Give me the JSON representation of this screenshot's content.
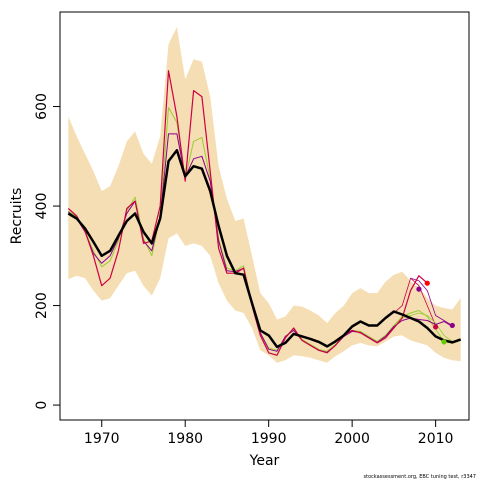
{
  "chart_data": {
    "type": "line",
    "xlabel": "Year",
    "ylabel": "Recruits",
    "footnote": "stockassessment.org, EBC tuning test, r3347",
    "xlim": [
      1965,
      2014
    ],
    "ylim": [
      -30,
      790
    ],
    "x_ticks": [
      1970,
      1980,
      1990,
      2000,
      2010
    ],
    "y_ticks": [
      0,
      200,
      400,
      600
    ],
    "band": {
      "color": "#f5deb3",
      "x": [
        1966,
        1967,
        1968,
        1969,
        1970,
        1971,
        1972,
        1973,
        1974,
        1975,
        1976,
        1977,
        1978,
        1979,
        1980,
        1981,
        1982,
        1983,
        1984,
        1985,
        1986,
        1987,
        1988,
        1989,
        1990,
        1991,
        1992,
        1993,
        1994,
        1995,
        1996,
        1997,
        1998,
        1999,
        2000,
        2001,
        2002,
        2003,
        2004,
        2005,
        2006,
        2007,
        2008,
        2009,
        2010,
        2011,
        2012,
        2013
      ],
      "upper": [
        580,
        540,
        505,
        470,
        430,
        440,
        480,
        530,
        550,
        505,
        485,
        540,
        725,
        760,
        655,
        695,
        690,
        620,
        480,
        415,
        370,
        375,
        300,
        225,
        205,
        172,
        178,
        200,
        198,
        190,
        180,
        165,
        185,
        200,
        225,
        235,
        225,
        225,
        248,
        262,
        268,
        250,
        235,
        215,
        200,
        195,
        192,
        215
      ],
      "lower": [
        253,
        260,
        255,
        230,
        210,
        215,
        240,
        265,
        270,
        240,
        220,
        255,
        335,
        345,
        320,
        325,
        320,
        300,
        245,
        210,
        190,
        185,
        155,
        110,
        100,
        85,
        90,
        100,
        98,
        95,
        90,
        85,
        98,
        108,
        120,
        125,
        120,
        118,
        128,
        138,
        140,
        130,
        125,
        120,
        105,
        95,
        90,
        88
      ]
    },
    "series": [
      {
        "color": "#000000",
        "lw": 2.5,
        "x": [
          1966,
          1967,
          1968,
          1969,
          1970,
          1971,
          1972,
          1973,
          1974,
          1975,
          1976,
          1977,
          1978,
          1979,
          1980,
          1981,
          1982,
          1983,
          1984,
          1985,
          1986,
          1987,
          1988,
          1989,
          1990,
          1991,
          1992,
          1993,
          1994,
          1995,
          1996,
          1997,
          1998,
          1999,
          2000,
          2001,
          2002,
          2003,
          2004,
          2005,
          2006,
          2007,
          2008,
          2009,
          2010,
          2011,
          2012,
          2013
        ],
        "values": [
          385,
          375,
          355,
          328,
          300,
          310,
          340,
          370,
          385,
          348,
          325,
          375,
          490,
          512,
          460,
          480,
          475,
          430,
          360,
          300,
          265,
          262,
          205,
          150,
          140,
          117,
          125,
          143,
          138,
          133,
          127,
          118,
          128,
          140,
          158,
          168,
          160,
          160,
          175,
          188,
          182,
          175,
          168,
          155,
          138,
          130,
          126,
          132
        ]
      },
      {
        "color": "#cc0044",
        "lw": 1.2,
        "x": [
          1966,
          1967,
          1968,
          1969,
          1970,
          1971,
          1972,
          1973,
          1974,
          1975,
          1976,
          1977,
          1978,
          1979,
          1980,
          1981,
          1982,
          1983,
          1984,
          1985,
          1986,
          1987,
          1988,
          1989,
          1990,
          1991,
          1992,
          1993,
          1994,
          1995,
          1996,
          1997,
          1998,
          1999,
          2000,
          2001,
          2002,
          2003,
          2004,
          2005,
          2006,
          2007,
          2008,
          2009
        ],
        "values": [
          395,
          380,
          350,
          300,
          240,
          255,
          310,
          395,
          410,
          325,
          330,
          400,
          672,
          580,
          450,
          632,
          620,
          470,
          315,
          265,
          265,
          275,
          200,
          140,
          105,
          100,
          135,
          155,
          130,
          120,
          110,
          105,
          120,
          140,
          150,
          145,
          135,
          125,
          135,
          155,
          175,
          230,
          260,
          245
        ]
      },
      {
        "color": "#9acd32",
        "lw": 1.0,
        "x": [
          1966,
          1967,
          1968,
          1969,
          1970,
          1971,
          1972,
          1973,
          1974,
          1975,
          1976,
          1977,
          1978,
          1979,
          1980,
          1981,
          1982,
          1983,
          1984,
          1985,
          1986,
          1987,
          1988,
          1989,
          1990,
          1991,
          1992,
          1993,
          1994,
          1995,
          1996,
          1997,
          1998,
          1999,
          2000,
          2001,
          2002,
          2003,
          2004,
          2005,
          2006,
          2007,
          2008,
          2009,
          2010,
          2011
        ],
        "values": [
          390,
          378,
          350,
          310,
          278,
          290,
          330,
          390,
          418,
          335,
          300,
          380,
          598,
          568,
          455,
          530,
          538,
          455,
          335,
          275,
          270,
          280,
          205,
          145,
          115,
          110,
          138,
          152,
          132,
          122,
          112,
          108,
          122,
          140,
          150,
          148,
          138,
          128,
          140,
          160,
          178,
          185,
          190,
          178,
          152,
          128
        ]
      },
      {
        "color": "#8b008b",
        "lw": 1.0,
        "x": [
          1966,
          1967,
          1968,
          1969,
          1970,
          1971,
          1972,
          1973,
          1974,
          1975,
          1976,
          1977,
          1978,
          1979,
          1980,
          1981,
          1982,
          1983,
          1984,
          1985,
          1986,
          1987,
          1988,
          1989,
          1990,
          1991,
          1992,
          1993,
          1994,
          1995,
          1996,
          1997,
          1998,
          1999,
          2000,
          2001,
          2002,
          2003,
          2004,
          2005,
          2006,
          2007,
          2008,
          2009,
          2010,
          2011,
          2012
        ],
        "values": [
          388,
          375,
          348,
          305,
          285,
          300,
          335,
          385,
          410,
          330,
          310,
          378,
          545,
          545,
          458,
          495,
          500,
          450,
          330,
          270,
          268,
          275,
          205,
          145,
          112,
          108,
          138,
          150,
          130,
          120,
          110,
          106,
          120,
          138,
          148,
          146,
          136,
          126,
          138,
          158,
          170,
          175,
          172,
          170,
          162,
          168,
          158
        ]
      },
      {
        "color": "#cc0044",
        "lw": 0.8,
        "x": [
          2005,
          2006,
          2007,
          2008,
          2009,
          2010
        ],
        "values": [
          185,
          200,
          255,
          240,
          200,
          160
        ]
      },
      {
        "color": "#9acd32",
        "lw": 0.8,
        "x": [
          2006,
          2007,
          2008,
          2009,
          2010,
          2011,
          2012
        ],
        "values": [
          175,
          180,
          185,
          180,
          165,
          140,
          128
        ]
      },
      {
        "color": "#8b008b",
        "lw": 0.8,
        "x": [
          2007,
          2008,
          2009,
          2010,
          2011,
          2012
        ],
        "values": [
          255,
          250,
          230,
          180,
          170,
          160
        ]
      }
    ],
    "endpoints": [
      {
        "color": "#ff0000",
        "x": 2009,
        "y": 245
      },
      {
        "color": "#8b008b",
        "x": 2008,
        "y": 233
      },
      {
        "color": "#cc0044",
        "x": 2010,
        "y": 157
      },
      {
        "color": "#8b008b",
        "x": 2012,
        "y": 160
      },
      {
        "color": "#66cc00",
        "x": 2011,
        "y": 127
      }
    ]
  }
}
